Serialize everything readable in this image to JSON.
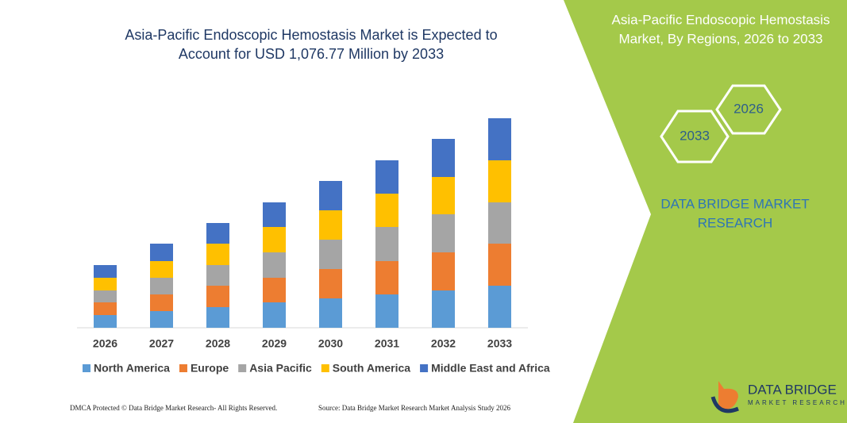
{
  "chart_data": {
    "type": "stacked_bar",
    "title": [
      "Asia-Pacific Endoscopic Hemostasis Market is Expected to",
      "Account for USD 1,076.77 Million by 2033"
    ],
    "categories": [
      "2026",
      "2027",
      "2028",
      "2029",
      "2030",
      "2031",
      "2032",
      "2033"
    ],
    "series": [
      {
        "name": "North America",
        "color": "#5b9bd5",
        "values": [
          16,
          21,
          26,
          32,
          37,
          42,
          47,
          53
        ]
      },
      {
        "name": "Europe",
        "color": "#ed7d31",
        "values": [
          16,
          21,
          27,
          31,
          37,
          42,
          48,
          53
        ]
      },
      {
        "name": "Asia Pacific",
        "color": "#a5a5a5",
        "values": [
          15,
          21,
          26,
          32,
          37,
          43,
          48,
          52
        ]
      },
      {
        "name": "South America",
        "color": "#ffc000",
        "values": [
          16,
          21,
          27,
          32,
          37,
          42,
          47,
          53
        ]
      },
      {
        "name": "Middle East and Africa",
        "color": "#4472c4",
        "values": [
          16,
          22,
          26,
          31,
          37,
          42,
          48,
          53
        ]
      }
    ],
    "ylim": [
      0,
      270
    ]
  },
  "side_panel": {
    "title": [
      "Asia-Pacific Endoscopic Hemostasis",
      "Market, By Regions, 2026 to 2033"
    ],
    "hexagons": [
      "2026",
      "2033"
    ],
    "brand": [
      "DATA BRIDGE MARKET",
      "RESEARCH"
    ]
  },
  "logo": {
    "name": "DATA BRIDGE",
    "tagline": "MARKET RESEARCH"
  },
  "footer": {
    "left": "DMCA Protected © Data Bridge Market Research- All Rights Reserved.",
    "right": "Source: Data Bridge Market Research Market Analysis Study 2026"
  }
}
